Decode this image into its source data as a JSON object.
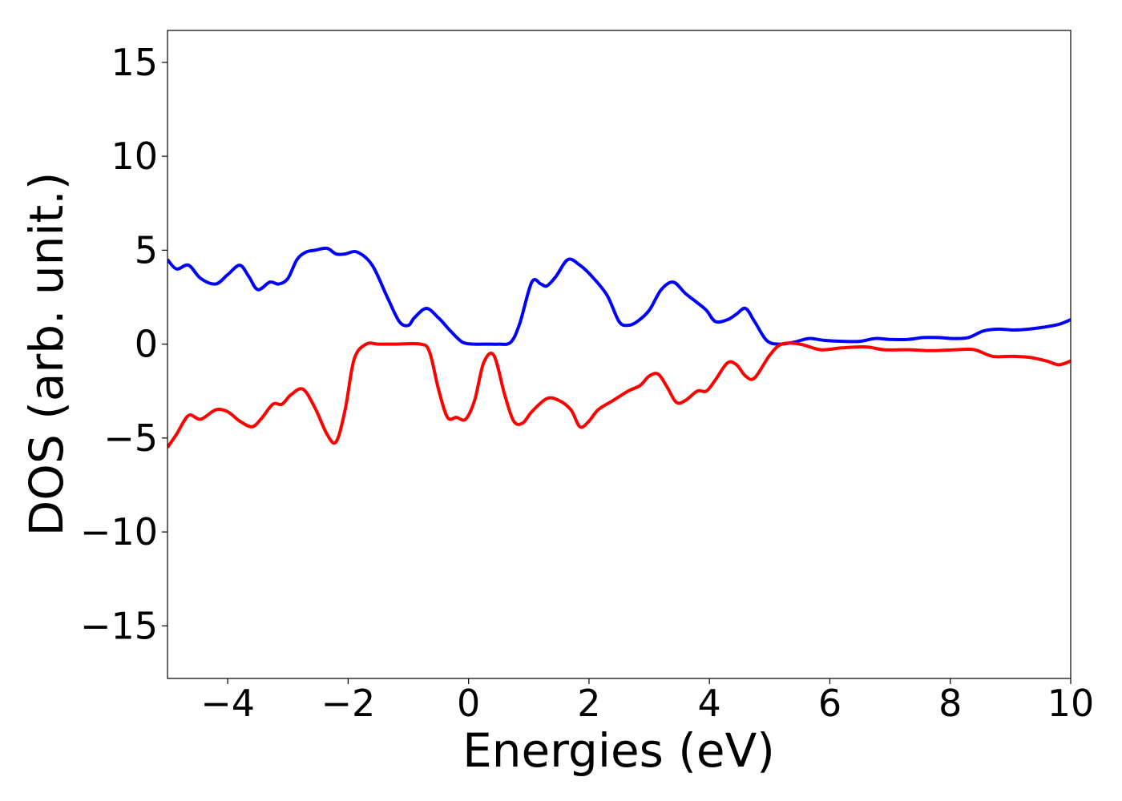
{
  "chart_data": {
    "type": "line",
    "title": "",
    "xlabel": "Energies (eV)",
    "ylabel": "DOS (arb. unit.)",
    "xlim": [
      -5,
      10
    ],
    "ylim": [
      -17.8,
      16.7
    ],
    "xticks": [
      -4,
      -2,
      0,
      2,
      4,
      6,
      8,
      10
    ],
    "xtick_labels": [
      "−4",
      "−2",
      "0",
      "2",
      "4",
      "6",
      "8",
      "10"
    ],
    "yticks": [
      15,
      10,
      5,
      0,
      -5,
      -10,
      -15
    ],
    "ytick_labels": [
      "15",
      "10",
      "5",
      "0",
      "−5",
      "−10",
      "−15"
    ],
    "grid": false,
    "legend": "none",
    "series": [
      {
        "color": "#0000ff",
        "x": [
          -5.0,
          -4.85,
          -4.65,
          -4.45,
          -4.2,
          -4.0,
          -3.8,
          -3.65,
          -3.5,
          -3.3,
          -3.15,
          -3.0,
          -2.85,
          -2.7,
          -2.55,
          -2.35,
          -2.2,
          -2.05,
          -1.85,
          -1.6,
          -1.35,
          -1.15,
          -1.0,
          -0.9,
          -0.7,
          -0.5,
          -0.3,
          -0.1,
          0.1,
          0.3,
          0.5,
          0.7,
          0.85,
          1.05,
          1.2,
          1.3,
          1.45,
          1.65,
          1.85,
          2.05,
          2.3,
          2.5,
          2.65,
          2.8,
          3.0,
          3.2,
          3.4,
          3.6,
          3.8,
          3.95,
          4.1,
          4.3,
          4.45,
          4.6,
          4.75,
          4.95,
          5.15,
          5.4,
          5.65,
          5.9,
          6.2,
          6.5,
          6.75,
          7.0,
          7.3,
          7.55,
          7.8,
          8.05,
          8.3,
          8.55,
          8.8,
          9.05,
          9.3,
          9.55,
          9.8,
          10.0
        ],
        "y": [
          4.5,
          4.0,
          4.2,
          3.5,
          3.2,
          3.7,
          4.2,
          3.6,
          2.9,
          3.3,
          3.2,
          3.5,
          4.5,
          4.9,
          5.0,
          5.1,
          4.8,
          4.8,
          4.9,
          4.2,
          2.5,
          1.2,
          1.0,
          1.4,
          1.9,
          1.4,
          0.7,
          0.1,
          0.0,
          0.0,
          0.0,
          0.1,
          1.1,
          3.3,
          3.2,
          3.1,
          3.6,
          4.5,
          4.2,
          3.6,
          2.6,
          1.2,
          1.0,
          1.2,
          1.8,
          2.9,
          3.3,
          2.7,
          2.2,
          1.8,
          1.2,
          1.3,
          1.6,
          1.9,
          1.2,
          0.2,
          0.0,
          0.1,
          0.3,
          0.2,
          0.15,
          0.15,
          0.3,
          0.25,
          0.25,
          0.35,
          0.35,
          0.3,
          0.35,
          0.7,
          0.8,
          0.75,
          0.8,
          0.9,
          1.05,
          1.3
        ]
      },
      {
        "color": "#ff0000",
        "x": [
          -5.0,
          -4.85,
          -4.65,
          -4.45,
          -4.2,
          -4.0,
          -3.8,
          -3.6,
          -3.45,
          -3.25,
          -3.1,
          -2.95,
          -2.75,
          -2.55,
          -2.35,
          -2.2,
          -2.05,
          -1.9,
          -1.7,
          -1.5,
          -1.2,
          -0.8,
          -0.65,
          -0.5,
          -0.35,
          -0.2,
          -0.05,
          0.1,
          0.25,
          0.42,
          0.6,
          0.75,
          0.9,
          1.05,
          1.3,
          1.5,
          1.7,
          1.85,
          2.0,
          2.15,
          2.4,
          2.65,
          2.85,
          3.0,
          3.15,
          3.3,
          3.45,
          3.6,
          3.8,
          3.95,
          4.1,
          4.3,
          4.45,
          4.6,
          4.75,
          5.0,
          5.2,
          5.5,
          5.85,
          6.2,
          6.6,
          6.9,
          7.3,
          7.7,
          8.1,
          8.4,
          8.7,
          9.0,
          9.3,
          9.6,
          9.8,
          10.0
        ],
        "y": [
          -5.5,
          -4.8,
          -3.8,
          -4.0,
          -3.5,
          -3.6,
          -4.1,
          -4.4,
          -4.0,
          -3.2,
          -3.2,
          -2.7,
          -2.4,
          -3.4,
          -4.8,
          -5.2,
          -3.5,
          -0.8,
          0.0,
          0.0,
          0.0,
          0.0,
          -0.4,
          -2.4,
          -3.9,
          -3.9,
          -4.0,
          -3.0,
          -1.0,
          -0.6,
          -2.7,
          -4.1,
          -4.2,
          -3.6,
          -2.9,
          -3.0,
          -3.5,
          -4.4,
          -4.1,
          -3.5,
          -3.0,
          -2.5,
          -2.2,
          -1.7,
          -1.6,
          -2.3,
          -3.1,
          -3.0,
          -2.5,
          -2.5,
          -1.9,
          -1.0,
          -1.1,
          -1.7,
          -1.8,
          -0.6,
          0.0,
          0.0,
          -0.3,
          -0.2,
          -0.15,
          -0.3,
          -0.3,
          -0.35,
          -0.3,
          -0.3,
          -0.65,
          -0.65,
          -0.7,
          -0.9,
          -1.1,
          -0.9
        ]
      }
    ]
  }
}
